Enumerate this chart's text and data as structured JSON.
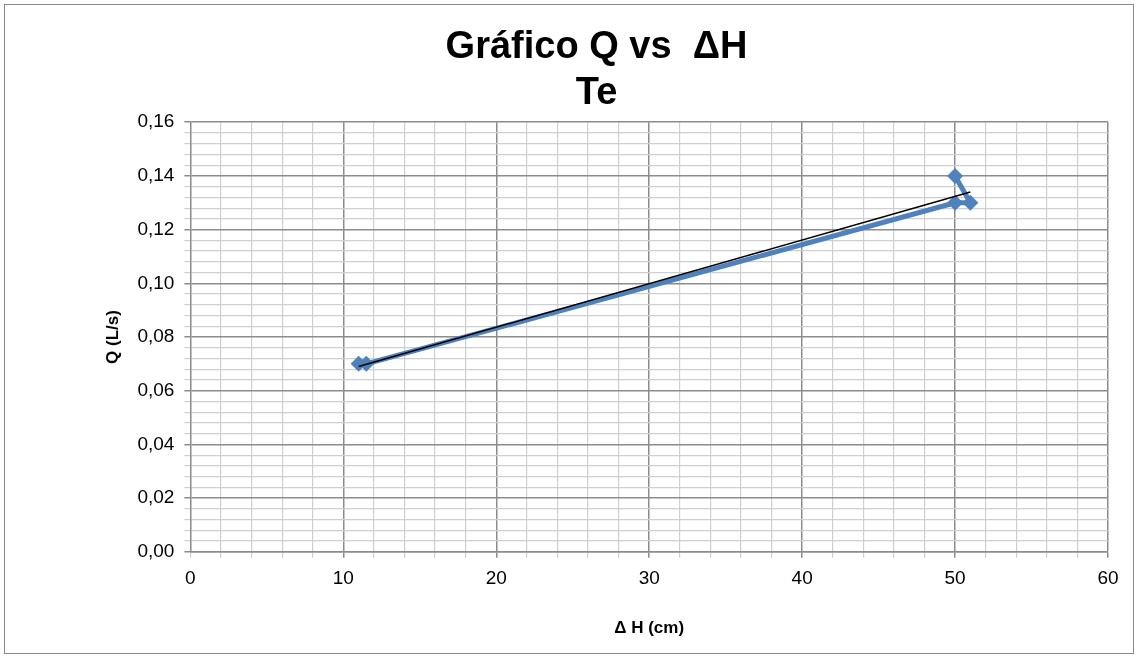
{
  "chart_data": {
    "type": "line",
    "title": "Gráfico Q vs  ΔH\nTe",
    "xlabel": "Δ H (cm)",
    "ylabel": "Q (L/s)",
    "xlim": [
      0,
      60
    ],
    "xticks": [
      0,
      {
        "value": 2,
        "label": null
      },
      {
        "value": 4,
        "label": null
      },
      {
        "value": 6,
        "label": null
      },
      {
        "value": 8,
        "label": null
      },
      10,
      {
        "value": 12,
        "label": null
      },
      {
        "value": 14,
        "label": null
      },
      {
        "value": 16,
        "label": null
      },
      {
        "value": 18,
        "label": null
      },
      20,
      {
        "value": 22,
        "label": null
      },
      {
        "value": 24,
        "label": null
      },
      {
        "value": 26,
        "label": null
      },
      {
        "value": 28,
        "label": null
      },
      30,
      {
        "value": 32,
        "label": null
      },
      {
        "value": 34,
        "label": null
      },
      {
        "value": 36,
        "label": null
      },
      {
        "value": 38,
        "label": null
      },
      40,
      {
        "value": 42,
        "label": null
      },
      {
        "value": 44,
        "label": null
      },
      {
        "value": 46,
        "label": null
      },
      {
        "value": 48,
        "label": null
      },
      50,
      {
        "value": 52,
        "label": null
      },
      {
        "value": 54,
        "label": null
      },
      {
        "value": 56,
        "label": null
      },
      {
        "value": 58,
        "label": null
      },
      60
    ],
    "ylim": [
      0,
      0.16
    ],
    "yticks": [
      {
        "value": 0,
        "label": "0,00"
      },
      {
        "value": 0.004,
        "label": null
      },
      {
        "value": 0.008,
        "label": null
      },
      {
        "value": 0.012,
        "label": null
      },
      {
        "value": 0.016,
        "label": null
      },
      {
        "value": 0.02,
        "label": "0,02"
      },
      {
        "value": 0.024,
        "label": null
      },
      {
        "value": 0.028,
        "label": null
      },
      {
        "value": 0.032,
        "label": null
      },
      {
        "value": 0.036,
        "label": null
      },
      {
        "value": 0.04,
        "label": "0,04"
      },
      {
        "value": 0.044,
        "label": null
      },
      {
        "value": 0.048,
        "label": null
      },
      {
        "value": 0.052,
        "label": null
      },
      {
        "value": 0.056,
        "label": null
      },
      {
        "value": 0.06,
        "label": "0,06"
      },
      {
        "value": 0.064,
        "label": null
      },
      {
        "value": 0.068,
        "label": null
      },
      {
        "value": 0.072,
        "label": null
      },
      {
        "value": 0.076,
        "label": null
      },
      {
        "value": 0.08,
        "label": "0,08"
      },
      {
        "value": 0.084,
        "label": null
      },
      {
        "value": 0.088,
        "label": null
      },
      {
        "value": 0.092,
        "label": null
      },
      {
        "value": 0.096,
        "label": null
      },
      {
        "value": 0.1,
        "label": "0,10"
      },
      {
        "value": 0.104,
        "label": null
      },
      {
        "value": 0.108,
        "label": null
      },
      {
        "value": 0.112,
        "label": null
      },
      {
        "value": 0.116,
        "label": null
      },
      {
        "value": 0.12,
        "label": "0,12"
      },
      {
        "value": 0.124,
        "label": null
      },
      {
        "value": 0.128,
        "label": null
      },
      {
        "value": 0.132,
        "label": null
      },
      {
        "value": 0.136,
        "label": null
      },
      {
        "value": 0.14,
        "label": "0,14"
      },
      {
        "value": 0.144,
        "label": null
      },
      {
        "value": 0.148,
        "label": null
      },
      {
        "value": 0.152,
        "label": null
      },
      {
        "value": 0.156,
        "label": null
      },
      {
        "value": 0.16,
        "label": "0,16"
      }
    ],
    "grid": true,
    "legend": false,
    "marker": "diamond",
    "series": [
      {
        "color": "#4f81bd",
        "x": [
          11,
          11.5,
          50,
          51,
          50
        ],
        "values": [
          0.07,
          0.07,
          0.13,
          0.13,
          0.14
        ]
      },
      {
        "type": "line",
        "marker": "none",
        "color": "#000000",
        "x": [
          11,
          51
        ],
        "values": [
          0.069,
          0.134
        ]
      }
    ]
  }
}
